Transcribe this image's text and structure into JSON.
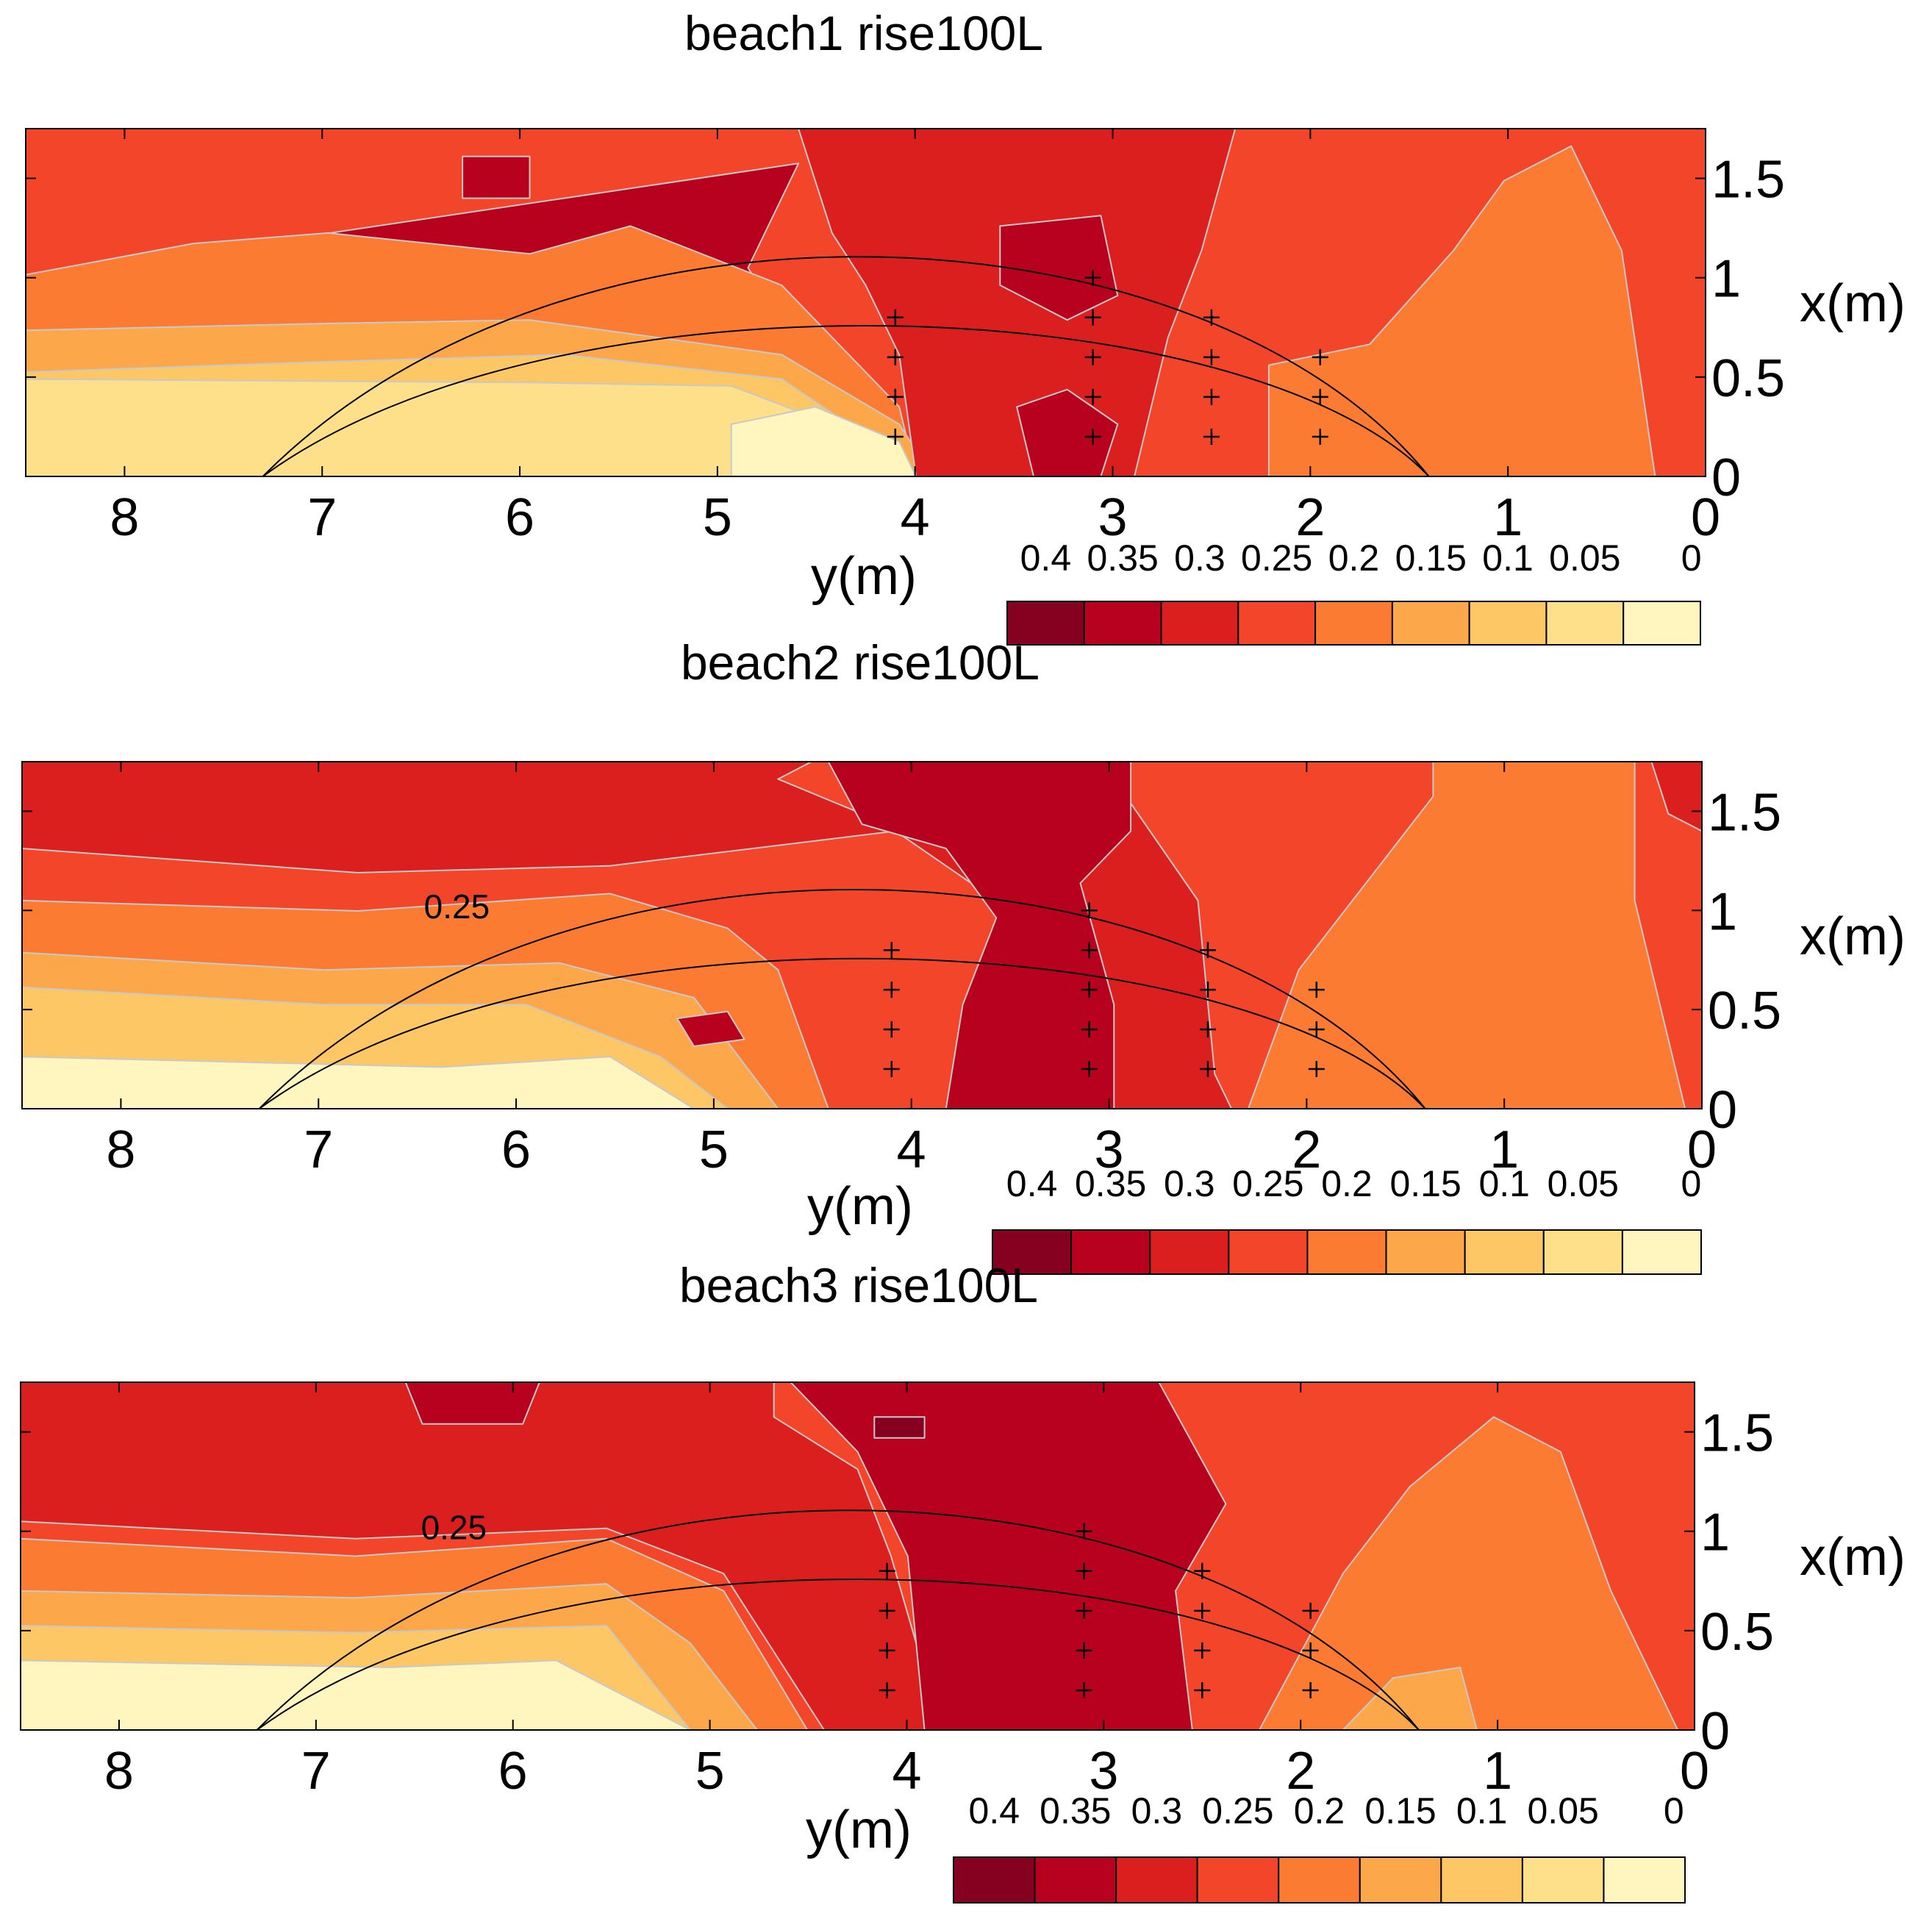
{
  "chart_data": [
    {
      "type": "heatmap",
      "title": "beach1 rise100L",
      "xlabel": "y(m)",
      "ylabel": "x(m)",
      "xlim": [
        8.5,
        0
      ],
      "ylim": [
        0,
        1.75
      ],
      "x_ticks": [
        "8",
        "7",
        "6",
        "5",
        "4",
        "3",
        "2",
        "1",
        "0"
      ],
      "y_ticks": [
        "0",
        "0.5",
        "1",
        "1.5"
      ],
      "colorbar": {
        "levels": [
          "0.4",
          "0.35",
          "0.3",
          "0.25",
          "0.2",
          "0.15",
          "0.1",
          "0.05",
          "0"
        ],
        "colors": [
          "#86001f",
          "#b8001f",
          "#db1f1f",
          "#f2452a",
          "#fb7b32",
          "#fda74b",
          "#fec765",
          "#fee08b",
          "#fff5bf"
        ]
      },
      "contour_labels": [],
      "measurement_points": [
        [
          4.1,
          0.2
        ],
        [
          4.1,
          0.4
        ],
        [
          4.1,
          0.6
        ],
        [
          4.1,
          0.8
        ],
        [
          3.1,
          0.2
        ],
        [
          3.1,
          0.4
        ],
        [
          3.1,
          0.6
        ],
        [
          3.1,
          0.8
        ],
        [
          3.1,
          1.0
        ],
        [
          2.5,
          0.2
        ],
        [
          2.5,
          0.4
        ],
        [
          2.5,
          0.6
        ],
        [
          2.5,
          0.8
        ],
        [
          1.95,
          0.2
        ],
        [
          1.95,
          0.4
        ],
        [
          1.95,
          0.6
        ]
      ]
    },
    {
      "type": "heatmap",
      "title": "beach2 rise100L",
      "xlabel": "y(m)",
      "ylabel": "x(m)",
      "xlim": [
        8.5,
        0
      ],
      "ylim": [
        0,
        1.75
      ],
      "x_ticks": [
        "8",
        "7",
        "6",
        "5",
        "4",
        "3",
        "2",
        "1",
        "0"
      ],
      "y_ticks": [
        "0",
        "0.5",
        "1",
        "1.5"
      ],
      "colorbar": {
        "levels": [
          "0.4",
          "0.35",
          "0.3",
          "0.25",
          "0.2",
          "0.15",
          "0.1",
          "0.05",
          "0"
        ],
        "colors": [
          "#86001f",
          "#b8001f",
          "#db1f1f",
          "#f2452a",
          "#fb7b32",
          "#fda74b",
          "#fec765",
          "#fee08b",
          "#fff5bf"
        ]
      },
      "contour_labels": [
        "0.25"
      ],
      "measurement_points": [
        [
          4.1,
          0.2
        ],
        [
          4.1,
          0.4
        ],
        [
          4.1,
          0.6
        ],
        [
          4.1,
          0.8
        ],
        [
          3.1,
          0.2
        ],
        [
          3.1,
          0.4
        ],
        [
          3.1,
          0.6
        ],
        [
          3.1,
          0.8
        ],
        [
          3.1,
          1.0
        ],
        [
          2.5,
          0.2
        ],
        [
          2.5,
          0.4
        ],
        [
          2.5,
          0.6
        ],
        [
          2.5,
          0.8
        ],
        [
          1.95,
          0.2
        ],
        [
          1.95,
          0.4
        ],
        [
          1.95,
          0.6
        ]
      ]
    },
    {
      "type": "heatmap",
      "title": "beach3 rise100L",
      "xlabel": "y(m)",
      "ylabel": "x(m)",
      "xlim": [
        8.5,
        0
      ],
      "ylim": [
        0,
        1.75
      ],
      "x_ticks": [
        "8",
        "7",
        "6",
        "5",
        "4",
        "3",
        "2",
        "1",
        "0"
      ],
      "y_ticks": [
        "0",
        "0.5",
        "1",
        "1.5"
      ],
      "colorbar": {
        "levels": [
          "0.4",
          "0.35",
          "0.3",
          "0.25",
          "0.2",
          "0.15",
          "0.1",
          "0.05",
          "0"
        ],
        "colors": [
          "#86001f",
          "#b8001f",
          "#db1f1f",
          "#f2452a",
          "#fb7b32",
          "#fda74b",
          "#fec765",
          "#fee08b",
          "#fff5bf"
        ]
      },
      "contour_labels": [
        "0.25"
      ],
      "measurement_points": [
        [
          4.1,
          0.2
        ],
        [
          4.1,
          0.4
        ],
        [
          4.1,
          0.6
        ],
        [
          4.1,
          0.8
        ],
        [
          3.1,
          0.2
        ],
        [
          3.1,
          0.4
        ],
        [
          3.1,
          0.6
        ],
        [
          3.1,
          0.8
        ],
        [
          3.1,
          1.0
        ],
        [
          2.5,
          0.2
        ],
        [
          2.5,
          0.4
        ],
        [
          2.5,
          0.6
        ],
        [
          2.5,
          0.8
        ],
        [
          1.95,
          0.2
        ],
        [
          1.95,
          0.4
        ],
        [
          1.95,
          0.6
        ]
      ]
    }
  ]
}
